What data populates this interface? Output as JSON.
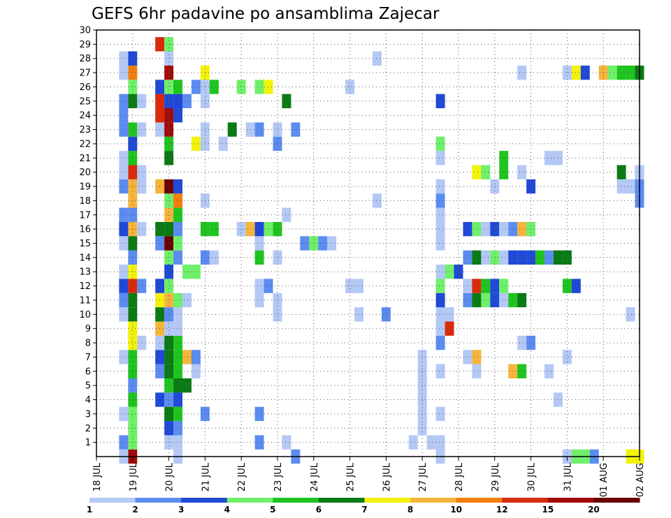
{
  "chart_data": {
    "type": "heatmap",
    "title": "GEFS 6hr padavine po ansamblima Zajecar",
    "xlabel": "",
    "ylabel": "",
    "x_ticks": [
      "18 JUL",
      "19 JUL",
      "20 JUL",
      "21 JUL",
      "22 JUL",
      "23 JUL",
      "24 JUL",
      "25 JUL",
      "26 JUL",
      "27 JUL",
      "28 JUL",
      "29 JUL",
      "30 JUL",
      "31 JUL",
      "01 AUG",
      "02 AUG"
    ],
    "y_ticks": [
      "1",
      "2",
      "3",
      "4",
      "5",
      "6",
      "7",
      "8",
      "9",
      "10",
      "11",
      "12",
      "13",
      "14",
      "15",
      "16",
      "17",
      "18",
      "19",
      "20",
      "21",
      "22",
      "23",
      "24",
      "25",
      "26",
      "27",
      "28",
      "29",
      "30"
    ],
    "xlim": [
      0,
      60
    ],
    "ylim": [
      0,
      30
    ],
    "x_unit": "6-hour steps from 18 JUL 00Z",
    "y_unit": "ensemble member",
    "grid": true,
    "colorbar": {
      "labels": [
        "1",
        "2",
        "3",
        "4",
        "5",
        "6",
        "7",
        "8",
        "10",
        "12",
        "15",
        "20"
      ],
      "colors": [
        "#b3c8f5",
        "#5b8cf0",
        "#1f49d6",
        "#6ff06a",
        "#1fc41f",
        "#0a7a14",
        "#f2f20a",
        "#f5b43c",
        "#f27f0a",
        "#d92a0a",
        "#a30a0a",
        "#6b0000"
      ]
    },
    "cells": [
      [
        4,
        0,
        "#a30a0a"
      ],
      [
        4,
        1,
        "#6ff06a"
      ],
      [
        4,
        2,
        "#6ff06a"
      ],
      [
        4,
        3,
        "#6ff06a"
      ],
      [
        4,
        4,
        "#1fc41f"
      ],
      [
        4,
        5,
        "#5b8cf0"
      ],
      [
        4,
        6,
        "#1fc41f"
      ],
      [
        4,
        7,
        "#1fc41f"
      ],
      [
        4,
        8,
        "#f2f20a"
      ],
      [
        4,
        9,
        "#f2f20a"
      ],
      [
        4,
        10,
        "#0a7a14"
      ],
      [
        4,
        11,
        "#0a7a14"
      ],
      [
        4,
        12,
        "#d92a0a"
      ],
      [
        4,
        13,
        "#f2f20a"
      ],
      [
        4,
        14,
        "#5b8cf0"
      ],
      [
        4,
        15,
        "#0a7a14"
      ],
      [
        4,
        16,
        "#f5b43c"
      ],
      [
        4,
        17,
        "#5b8cf0"
      ],
      [
        4,
        18,
        "#f5b43c"
      ],
      [
        4,
        19,
        "#f5b43c"
      ],
      [
        4,
        20,
        "#d92a0a"
      ],
      [
        4,
        21,
        "#1fc41f"
      ],
      [
        4,
        22,
        "#1f49d6"
      ],
      [
        4,
        23,
        "#1fc41f"
      ],
      [
        4,
        25,
        "#0a7a14"
      ],
      [
        4,
        26,
        "#6ff06a"
      ],
      [
        4,
        27,
        "#f27f0a"
      ],
      [
        4,
        28,
        "#1f49d6"
      ],
      [
        3,
        0,
        "#b3c8f5"
      ],
      [
        3,
        1,
        "#5b8cf0"
      ],
      [
        3,
        3,
        "#b3c8f5"
      ],
      [
        3,
        7,
        "#b3c8f5"
      ],
      [
        3,
        10,
        "#b3c8f5"
      ],
      [
        3,
        11,
        "#5b8cf0"
      ],
      [
        3,
        12,
        "#1f49d6"
      ],
      [
        3,
        13,
        "#b3c8f5"
      ],
      [
        3,
        15,
        "#b3c8f5"
      ],
      [
        3,
        16,
        "#1f49d6"
      ],
      [
        3,
        17,
        "#5b8cf0"
      ],
      [
        3,
        19,
        "#5b8cf0"
      ],
      [
        3,
        20,
        "#b3c8f5"
      ],
      [
        3,
        21,
        "#b3c8f5"
      ],
      [
        3,
        23,
        "#5b8cf0"
      ],
      [
        3,
        24,
        "#5b8cf0"
      ],
      [
        3,
        25,
        "#5b8cf0"
      ],
      [
        3,
        27,
        "#b3c8f5"
      ],
      [
        3,
        28,
        "#b3c8f5"
      ],
      [
        5,
        8,
        "#b3c8f5"
      ],
      [
        5,
        12,
        "#5b8cf0"
      ],
      [
        5,
        16,
        "#b3c8f5"
      ],
      [
        5,
        19,
        "#b3c8f5"
      ],
      [
        5,
        20,
        "#b3c8f5"
      ],
      [
        5,
        23,
        "#b3c8f5"
      ],
      [
        5,
        25,
        "#b3c8f5"
      ],
      [
        7,
        4,
        "#1f49d6"
      ],
      [
        7,
        6,
        "#5b8cf0"
      ],
      [
        7,
        7,
        "#1f49d6"
      ],
      [
        7,
        8,
        "#b3c8f5"
      ],
      [
        7,
        9,
        "#f5b43c"
      ],
      [
        7,
        10,
        "#0a7a14"
      ],
      [
        7,
        11,
        "#f2f20a"
      ],
      [
        7,
        12,
        "#1f49d6"
      ],
      [
        7,
        15,
        "#5b8cf0"
      ],
      [
        7,
        16,
        "#0a7a14"
      ],
      [
        7,
        19,
        "#f5b43c"
      ],
      [
        7,
        23,
        "#b3c8f5"
      ],
      [
        7,
        24,
        "#d92a0a"
      ],
      [
        7,
        25,
        "#d92a0a"
      ],
      [
        7,
        26,
        "#1f49d6"
      ],
      [
        7,
        29,
        "#d92a0a"
      ],
      [
        8,
        1,
        "#b3c8f5"
      ],
      [
        8,
        2,
        "#1f49d6"
      ],
      [
        8,
        3,
        "#0a7a14"
      ],
      [
        8,
        4,
        "#5b8cf0"
      ],
      [
        8,
        5,
        "#1fc41f"
      ],
      [
        8,
        6,
        "#0a7a14"
      ],
      [
        8,
        7,
        "#0a7a14"
      ],
      [
        8,
        8,
        "#0a7a14"
      ],
      [
        8,
        9,
        "#b3c8f5"
      ],
      [
        8,
        10,
        "#5b8cf0"
      ],
      [
        8,
        11,
        "#f5b43c"
      ],
      [
        8,
        12,
        "#6ff06a"
      ],
      [
        8,
        13,
        "#1f49d6"
      ],
      [
        8,
        14,
        "#6ff06a"
      ],
      [
        8,
        15,
        "#6b0000"
      ],
      [
        8,
        16,
        "#0a7a14"
      ],
      [
        8,
        17,
        "#f5b43c"
      ],
      [
        8,
        18,
        "#6ff06a"
      ],
      [
        8,
        19,
        "#6b0000"
      ],
      [
        8,
        21,
        "#0a7a14"
      ],
      [
        8,
        22,
        "#1fc41f"
      ],
      [
        8,
        23,
        "#a30a0a"
      ],
      [
        8,
        24,
        "#a30a0a"
      ],
      [
        8,
        25,
        "#1f49d6"
      ],
      [
        8,
        26,
        "#6ff06a"
      ],
      [
        8,
        27,
        "#a30a0a"
      ],
      [
        8,
        28,
        "#b3c8f5"
      ],
      [
        8,
        29,
        "#6ff06a"
      ],
      [
        9,
        0,
        "#b3c8f5"
      ],
      [
        9,
        1,
        "#b3c8f5"
      ],
      [
        9,
        2,
        "#5b8cf0"
      ],
      [
        9,
        3,
        "#1fc41f"
      ],
      [
        9,
        4,
        "#1f49d6"
      ],
      [
        9,
        5,
        "#0a7a14"
      ],
      [
        9,
        6,
        "#1fc41f"
      ],
      [
        9,
        7,
        "#1fc41f"
      ],
      [
        9,
        8,
        "#1fc41f"
      ],
      [
        9,
        9,
        "#b3c8f5"
      ],
      [
        9,
        10,
        "#b3c8f5"
      ],
      [
        9,
        11,
        "#6ff06a"
      ],
      [
        9,
        14,
        "#5b8cf0"
      ],
      [
        9,
        15,
        "#6ff06a"
      ],
      [
        9,
        16,
        "#5b8cf0"
      ],
      [
        9,
        17,
        "#1fc41f"
      ],
      [
        9,
        18,
        "#f27f0a"
      ],
      [
        9,
        19,
        "#1f49d6"
      ],
      [
        9,
        24,
        "#1f49d6"
      ],
      [
        9,
        25,
        "#1f49d6"
      ],
      [
        9,
        26,
        "#1fc41f"
      ],
      [
        10,
        5,
        "#0a7a14"
      ],
      [
        10,
        7,
        "#f5b43c"
      ],
      [
        10,
        11,
        "#b3c8f5"
      ],
      [
        10,
        13,
        "#6ff06a"
      ],
      [
        10,
        25,
        "#5b8cf0"
      ],
      [
        11,
        6,
        "#b3c8f5"
      ],
      [
        11,
        7,
        "#5b8cf0"
      ],
      [
        11,
        13,
        "#6ff06a"
      ],
      [
        11,
        22,
        "#f2f20a"
      ],
      [
        11,
        26,
        "#5b8cf0"
      ],
      [
        12,
        3,
        "#5b8cf0"
      ],
      [
        12,
        14,
        "#5b8cf0"
      ],
      [
        12,
        16,
        "#1fc41f"
      ],
      [
        12,
        18,
        "#b3c8f5"
      ],
      [
        12,
        22,
        "#b3c8f5"
      ],
      [
        12,
        23,
        "#b3c8f5"
      ],
      [
        12,
        25,
        "#b3c8f5"
      ],
      [
        12,
        26,
        "#b3c8f5"
      ],
      [
        12,
        27,
        "#f2f20a"
      ],
      [
        13,
        14,
        "#b3c8f5"
      ],
      [
        13,
        16,
        "#1fc41f"
      ],
      [
        13,
        26,
        "#1fc41f"
      ],
      [
        14,
        22,
        "#b3c8f5"
      ],
      [
        15,
        23,
        "#0a7a14"
      ],
      [
        16,
        16,
        "#b3c8f5"
      ],
      [
        16,
        26,
        "#6ff06a"
      ],
      [
        17,
        16,
        "#f5b43c"
      ],
      [
        17,
        23,
        "#b3c8f5"
      ],
      [
        18,
        1,
        "#5b8cf0"
      ],
      [
        18,
        3,
        "#5b8cf0"
      ],
      [
        18,
        11,
        "#b3c8f5"
      ],
      [
        18,
        12,
        "#b3c8f5"
      ],
      [
        18,
        14,
        "#1fc41f"
      ],
      [
        18,
        15,
        "#b3c8f5"
      ],
      [
        18,
        16,
        "#1f49d6"
      ],
      [
        18,
        23,
        "#5b8cf0"
      ],
      [
        18,
        26,
        "#6ff06a"
      ],
      [
        19,
        12,
        "#5b8cf0"
      ],
      [
        19,
        16,
        "#6ff06a"
      ],
      [
        19,
        26,
        "#f2f20a"
      ],
      [
        20,
        10,
        "#b3c8f5"
      ],
      [
        20,
        11,
        "#b3c8f5"
      ],
      [
        20,
        14,
        "#b3c8f5"
      ],
      [
        20,
        16,
        "#1fc41f"
      ],
      [
        20,
        22,
        "#5b8cf0"
      ],
      [
        20,
        23,
        "#b3c8f5"
      ],
      [
        21,
        1,
        "#b3c8f5"
      ],
      [
        21,
        17,
        "#b3c8f5"
      ],
      [
        21,
        25,
        "#0a7a14"
      ],
      [
        22,
        0,
        "#5b8cf0"
      ],
      [
        22,
        23,
        "#5b8cf0"
      ],
      [
        23,
        15,
        "#5b8cf0"
      ],
      [
        24,
        15,
        "#6ff06a"
      ],
      [
        25,
        15,
        "#5b8cf0"
      ],
      [
        26,
        15,
        "#b3c8f5"
      ],
      [
        28,
        12,
        "#b3c8f5"
      ],
      [
        28,
        26,
        "#b3c8f5"
      ],
      [
        29,
        10,
        "#b3c8f5"
      ],
      [
        29,
        12,
        "#b3c8f5"
      ],
      [
        31,
        18,
        "#b3c8f5"
      ],
      [
        31,
        28,
        "#b3c8f5"
      ],
      [
        32,
        10,
        "#5b8cf0"
      ],
      [
        35,
        1,
        "#b3c8f5"
      ],
      [
        36,
        2,
        "#b3c8f5"
      ],
      [
        36,
        3,
        "#b3c8f5"
      ],
      [
        36,
        4,
        "#b3c8f5"
      ],
      [
        36,
        5,
        "#b3c8f5"
      ],
      [
        36,
        6,
        "#b3c8f5"
      ],
      [
        36,
        7,
        "#b3c8f5"
      ],
      [
        37,
        1,
        "#b3c8f5"
      ],
      [
        38,
        0,
        "#b3c8f5"
      ],
      [
        38,
        1,
        "#b3c8f5"
      ],
      [
        38,
        3,
        "#b3c8f5"
      ],
      [
        38,
        6,
        "#b3c8f5"
      ],
      [
        38,
        8,
        "#5b8cf0"
      ],
      [
        38,
        9,
        "#b3c8f5"
      ],
      [
        38,
        10,
        "#b3c8f5"
      ],
      [
        38,
        11,
        "#1f49d6"
      ],
      [
        38,
        12,
        "#6ff06a"
      ],
      [
        38,
        13,
        "#b3c8f5"
      ],
      [
        38,
        15,
        "#b3c8f5"
      ],
      [
        38,
        16,
        "#b3c8f5"
      ],
      [
        38,
        17,
        "#b3c8f5"
      ],
      [
        38,
        18,
        "#5b8cf0"
      ],
      [
        38,
        19,
        "#b3c8f5"
      ],
      [
        38,
        21,
        "#b3c8f5"
      ],
      [
        38,
        22,
        "#6ff06a"
      ],
      [
        38,
        25,
        "#1f49d6"
      ],
      [
        39,
        9,
        "#d92a0a"
      ],
      [
        39,
        10,
        "#b3c8f5"
      ],
      [
        39,
        13,
        "#6ff06a"
      ],
      [
        40,
        13,
        "#1f49d6"
      ],
      [
        41,
        7,
        "#b3c8f5"
      ],
      [
        41,
        11,
        "#5b8cf0"
      ],
      [
        41,
        12,
        "#b3c8f5"
      ],
      [
        41,
        14,
        "#5b8cf0"
      ],
      [
        41,
        16,
        "#1f49d6"
      ],
      [
        42,
        6,
        "#b3c8f5"
      ],
      [
        42,
        7,
        "#f5b43c"
      ],
      [
        42,
        11,
        "#0a7a14"
      ],
      [
        42,
        12,
        "#d92a0a"
      ],
      [
        42,
        14,
        "#0a7a14"
      ],
      [
        42,
        16,
        "#6ff06a"
      ],
      [
        42,
        20,
        "#f2f20a"
      ],
      [
        43,
        11,
        "#6ff06a"
      ],
      [
        43,
        12,
        "#1fc41f"
      ],
      [
        43,
        14,
        "#b3c8f5"
      ],
      [
        43,
        16,
        "#b3c8f5"
      ],
      [
        43,
        20,
        "#6ff06a"
      ],
      [
        44,
        11,
        "#1f49d6"
      ],
      [
        44,
        12,
        "#1f49d6"
      ],
      [
        44,
        14,
        "#6ff06a"
      ],
      [
        44,
        16,
        "#1f49d6"
      ],
      [
        44,
        19,
        "#b3c8f5"
      ],
      [
        45,
        11,
        "#b3c8f5"
      ],
      [
        45,
        12,
        "#6ff06a"
      ],
      [
        45,
        14,
        "#b3c8f5"
      ],
      [
        45,
        16,
        "#b3c8f5"
      ],
      [
        45,
        20,
        "#1fc41f"
      ],
      [
        45,
        21,
        "#1fc41f"
      ],
      [
        46,
        6,
        "#f5b43c"
      ],
      [
        46,
        11,
        "#1fc41f"
      ],
      [
        46,
        14,
        "#1f49d6"
      ],
      [
        46,
        16,
        "#5b8cf0"
      ],
      [
        47,
        6,
        "#1fc41f"
      ],
      [
        47,
        8,
        "#b3c8f5"
      ],
      [
        47,
        11,
        "#0a7a14"
      ],
      [
        47,
        14,
        "#1f49d6"
      ],
      [
        47,
        16,
        "#f5b43c"
      ],
      [
        47,
        20,
        "#b3c8f5"
      ],
      [
        47,
        27,
        "#b3c8f5"
      ],
      [
        48,
        8,
        "#5b8cf0"
      ],
      [
        48,
        14,
        "#1f49d6"
      ],
      [
        48,
        16,
        "#6ff06a"
      ],
      [
        48,
        19,
        "#1f49d6"
      ],
      [
        49,
        14,
        "#1fc41f"
      ],
      [
        50,
        6,
        "#b3c8f5"
      ],
      [
        50,
        14,
        "#5b8cf0"
      ],
      [
        50,
        21,
        "#b3c8f5"
      ],
      [
        51,
        4,
        "#b3c8f5"
      ],
      [
        51,
        14,
        "#0a7a14"
      ],
      [
        51,
        21,
        "#b3c8f5"
      ],
      [
        52,
        0,
        "#b3c8f5"
      ],
      [
        52,
        7,
        "#b3c8f5"
      ],
      [
        52,
        12,
        "#1fc41f"
      ],
      [
        52,
        14,
        "#0a7a14"
      ],
      [
        52,
        27,
        "#b3c8f5"
      ],
      [
        53,
        0,
        "#6ff06a"
      ],
      [
        53,
        12,
        "#1f49d6"
      ],
      [
        53,
        27,
        "#f2f20a"
      ],
      [
        54,
        0,
        "#6ff06a"
      ],
      [
        54,
        27,
        "#1f49d6"
      ],
      [
        55,
        0,
        "#5b8cf0"
      ],
      [
        56,
        27,
        "#f5b43c"
      ],
      [
        57,
        27,
        "#6ff06a"
      ],
      [
        58,
        19,
        "#b3c8f5"
      ],
      [
        58,
        20,
        "#0a7a14"
      ],
      [
        58,
        27,
        "#1fc41f"
      ],
      [
        59,
        0,
        "#f2f20a"
      ],
      [
        59,
        10,
        "#b3c8f5"
      ],
      [
        59,
        19,
        "#b3c8f5"
      ],
      [
        59,
        27,
        "#1fc41f"
      ],
      [
        60,
        0,
        "#f2f20a"
      ],
      [
        60,
        18,
        "#5b8cf0"
      ],
      [
        60,
        19,
        "#5b8cf0"
      ],
      [
        60,
        20,
        "#b3c8f5"
      ],
      [
        60,
        27,
        "#0a7a14"
      ]
    ]
  }
}
